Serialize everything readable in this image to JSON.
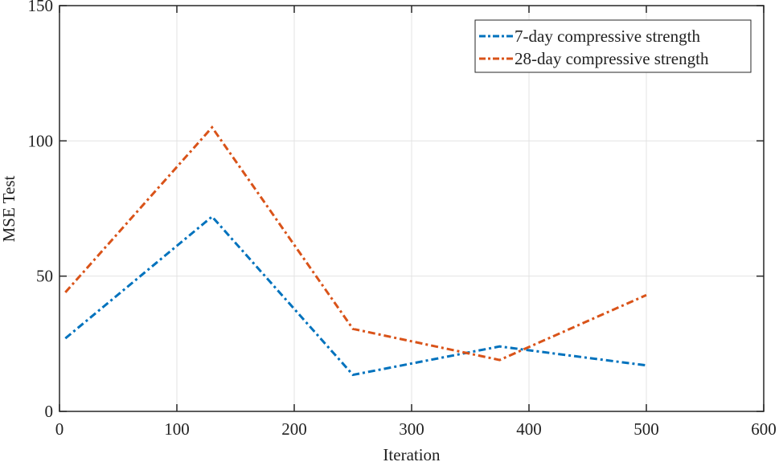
{
  "chart_data": {
    "type": "line",
    "title": "",
    "xlabel": "Iteration",
    "ylabel": "MSE Test",
    "xlim": [
      0,
      600
    ],
    "ylim": [
      0,
      150
    ],
    "xticks": [
      0,
      100,
      200,
      300,
      400,
      500,
      600
    ],
    "yticks": [
      0,
      50,
      100,
      150
    ],
    "grid": true,
    "legend_position": "upper right",
    "x": [
      5,
      130,
      250,
      375,
      500
    ],
    "series": [
      {
        "name": "7-day compressive strength",
        "color": "#0072BD",
        "linestyle": "dash-dot",
        "values": [
          27,
          72,
          13.5,
          24,
          17
        ]
      },
      {
        "name": "28-day compressive strength",
        "color": "#D95319",
        "linestyle": "dash-dot",
        "values": [
          44,
          105,
          30.5,
          19,
          43
        ]
      }
    ]
  }
}
